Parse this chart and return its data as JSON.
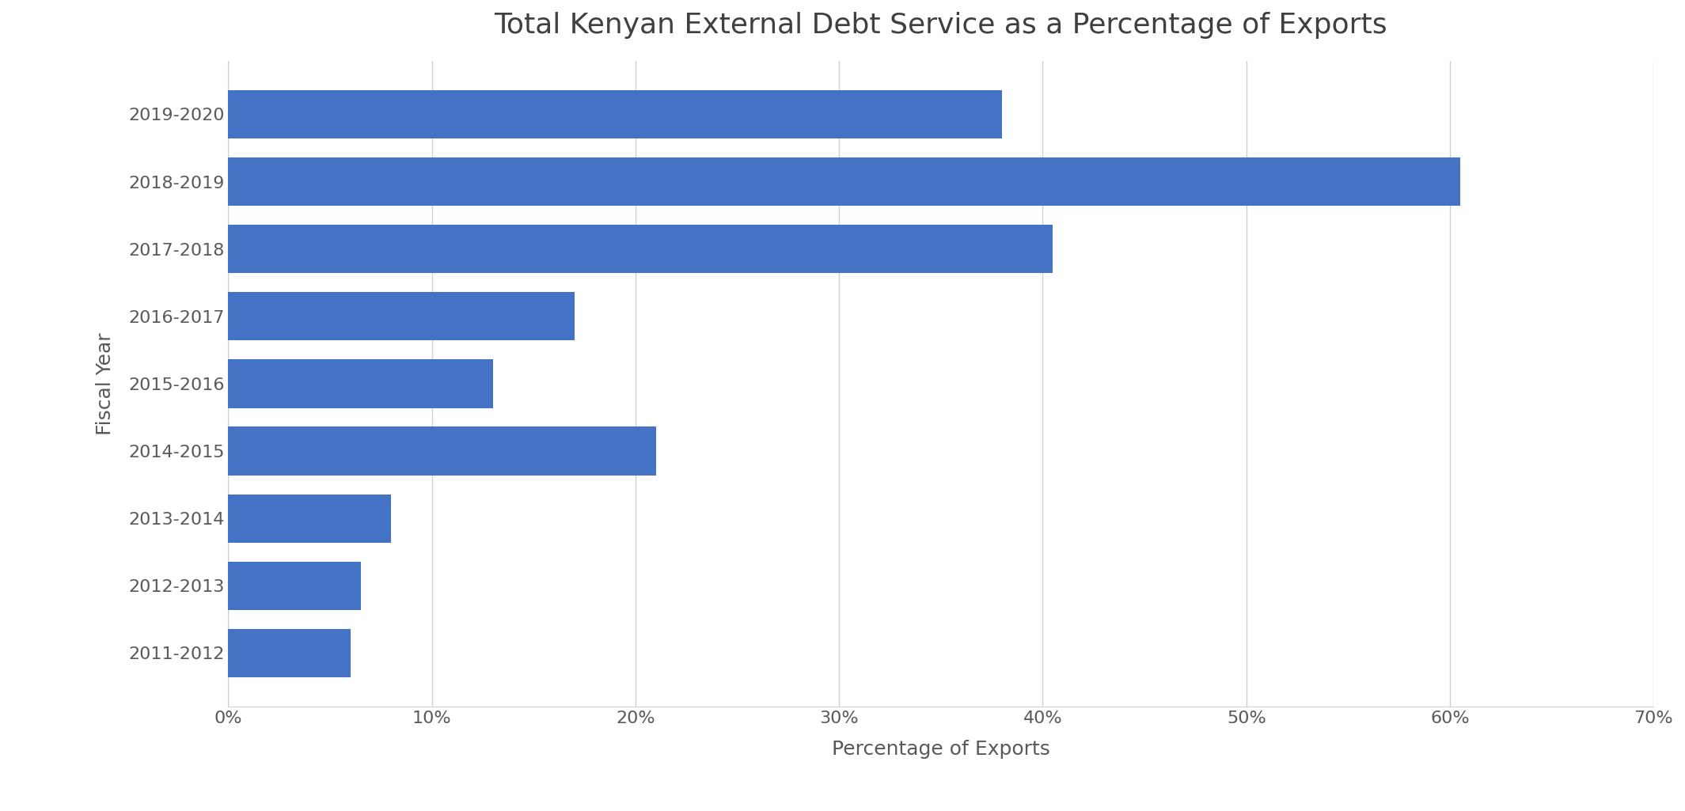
{
  "title": "Total Kenyan External Debt Service as a Percentage of Exports",
  "xlabel": "Percentage of Exports",
  "ylabel": "Fiscal Year",
  "categories": [
    "2011-2012",
    "2012-2013",
    "2013-2014",
    "2014-2015",
    "2015-2016",
    "2016-2017",
    "2017-2018",
    "2018-2019",
    "2019-2020"
  ],
  "values": [
    6.0,
    6.5,
    8.0,
    21.0,
    13.0,
    17.0,
    40.5,
    60.5,
    38.0
  ],
  "bar_color": "#4472C4",
  "background_color": "#ffffff",
  "xlim": [
    0,
    70
  ],
  "xtick_values": [
    0,
    10,
    20,
    30,
    40,
    50,
    60,
    70
  ],
  "title_fontsize": 26,
  "label_fontsize": 18,
  "tick_fontsize": 16,
  "bar_height": 0.72,
  "grid_color": "#d0d0d0",
  "title_color": "#404040",
  "tick_label_color": "#595959",
  "axis_label_color": "#595959"
}
